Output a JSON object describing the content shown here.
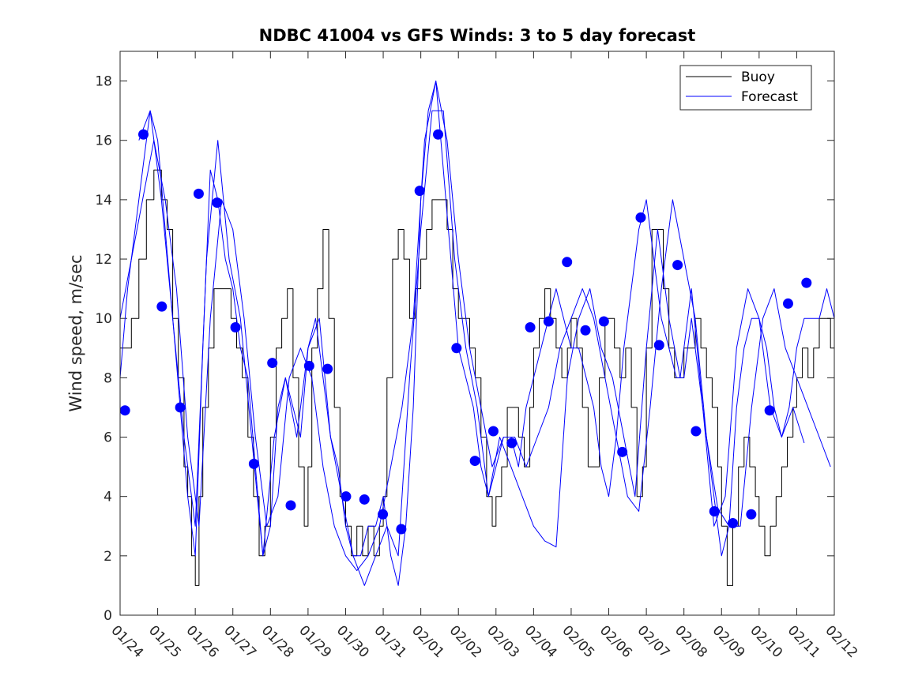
{
  "chart_data": {
    "type": "line",
    "title": "NDBC 41004 vs GFS Winds: 3 to 5 day forecast",
    "xlabel": "",
    "ylabel": "Wind speed, m/sec",
    "xlim": [
      0,
      19
    ],
    "ylim": [
      0,
      19
    ],
    "y_ticks": [
      0,
      2,
      4,
      6,
      8,
      10,
      12,
      14,
      16,
      18
    ],
    "x_ticks": [
      {
        "x": 0,
        "label": "01/24"
      },
      {
        "x": 1,
        "label": "01/25"
      },
      {
        "x": 2,
        "label": "01/26"
      },
      {
        "x": 3,
        "label": "01/27"
      },
      {
        "x": 4,
        "label": "01/28"
      },
      {
        "x": 5,
        "label": "01/29"
      },
      {
        "x": 6,
        "label": "01/30"
      },
      {
        "x": 7,
        "label": "01/31"
      },
      {
        "x": 8,
        "label": "02/01"
      },
      {
        "x": 9,
        "label": "02/02"
      },
      {
        "x": 10,
        "label": "02/03"
      },
      {
        "x": 11,
        "label": "02/04"
      },
      {
        "x": 12,
        "label": "02/05"
      },
      {
        "x": 13,
        "label": "02/06"
      },
      {
        "x": 14,
        "label": "02/07"
      },
      {
        "x": 15,
        "label": "02/08"
      },
      {
        "x": 16,
        "label": "02/09"
      },
      {
        "x": 17,
        "label": "02/10"
      },
      {
        "x": 18,
        "label": "02/11"
      },
      {
        "x": 19,
        "label": "02/12"
      }
    ],
    "legend": {
      "position": "top-right",
      "entries": [
        {
          "name": "Buoy",
          "color": "#000000"
        },
        {
          "name": "Forecast",
          "color": "#0000ff"
        }
      ]
    },
    "series": [
      {
        "name": "Buoy",
        "color": "#000000",
        "x": [
          0.0,
          0.15,
          0.3,
          0.5,
          0.7,
          0.9,
          1.0,
          1.1,
          1.25,
          1.4,
          1.55,
          1.7,
          1.8,
          1.9,
          2.0,
          2.1,
          2.2,
          2.35,
          2.5,
          2.65,
          2.8,
          2.95,
          3.1,
          3.25,
          3.4,
          3.55,
          3.7,
          3.85,
          4.0,
          4.15,
          4.3,
          4.45,
          4.6,
          4.75,
          4.9,
          5.0,
          5.1,
          5.25,
          5.4,
          5.55,
          5.7,
          5.85,
          6.0,
          6.15,
          6.3,
          6.45,
          6.6,
          6.75,
          6.9,
          7.0,
          7.1,
          7.25,
          7.4,
          7.55,
          7.7,
          7.85,
          8.0,
          8.15,
          8.3,
          8.5,
          8.7,
          8.85,
          9.0,
          9.15,
          9.3,
          9.45,
          9.6,
          9.75,
          9.9,
          10.0,
          10.15,
          10.3,
          10.45,
          10.6,
          10.75,
          10.9,
          11.0,
          11.15,
          11.3,
          11.45,
          11.6,
          11.75,
          11.9,
          12.0,
          12.15,
          12.3,
          12.45,
          12.6,
          12.75,
          12.9,
          13.0,
          13.15,
          13.3,
          13.45,
          13.6,
          13.75,
          13.9,
          14.0,
          14.15,
          14.3,
          14.45,
          14.6,
          14.75,
          14.9,
          15.0,
          15.15,
          15.3,
          15.45,
          15.6,
          15.75,
          15.9,
          16.0,
          16.15,
          16.3,
          16.45,
          16.6,
          16.75,
          16.9,
          17.0,
          17.15,
          17.3,
          17.45,
          17.6,
          17.75,
          17.9,
          18.0,
          18.15,
          18.3,
          18.45,
          18.6,
          18.75,
          18.9,
          19.0
        ],
        "values": [
          9,
          9,
          10,
          12,
          14,
          15,
          15,
          14,
          13,
          10,
          8,
          5,
          4,
          2,
          1,
          4,
          7,
          9,
          11,
          11,
          11,
          10,
          9,
          8,
          6,
          4,
          2,
          3,
          6,
          9,
          10,
          11,
          8,
          5,
          3,
          5,
          9,
          11,
          13,
          10,
          7,
          4,
          3,
          2,
          3,
          2,
          3,
          2,
          3,
          4,
          8,
          12,
          13,
          12,
          10,
          11,
          12,
          13,
          14,
          14,
          13,
          11,
          10,
          10,
          9,
          8,
          6,
          4,
          3,
          4,
          5,
          7,
          7,
          6,
          5,
          7,
          9,
          10,
          11,
          10,
          9,
          8,
          9,
          10,
          9,
          7,
          5,
          5,
          8,
          10,
          10,
          9,
          8,
          9,
          7,
          4,
          5,
          9,
          13,
          13,
          11,
          9,
          8,
          8,
          9,
          9,
          10,
          9,
          8,
          7,
          5,
          3,
          1,
          3,
          5,
          6,
          5,
          4,
          3,
          2,
          3,
          4,
          5,
          6,
          7,
          8,
          9,
          8,
          9,
          10,
          10,
          9,
          10
        ]
      },
      {
        "name": "Forecast",
        "color": "#0000ff",
        "x": [
          0.0,
          0.2,
          0.4,
          0.6,
          0.8,
          1.0,
          1.2,
          1.4,
          1.6,
          1.8,
          2.0,
          2.2,
          2.4,
          2.6,
          2.8,
          3.0,
          3.2,
          3.4,
          3.6,
          3.8,
          4.0,
          4.2,
          4.4,
          4.6,
          4.8,
          5.0,
          5.2,
          5.4,
          5.6,
          5.8,
          6.0,
          6.2,
          6.4,
          6.6,
          6.8,
          7.0,
          7.2,
          7.4,
          7.6,
          7.8,
          8.0,
          8.2,
          8.4,
          8.6,
          8.8,
          9.0,
          9.2,
          9.4,
          9.6,
          9.8,
          10.0,
          10.2,
          10.4,
          10.6,
          10.8,
          11.0,
          11.2,
          11.4,
          11.6,
          11.8,
          12.0,
          12.2,
          12.4,
          12.6,
          12.8,
          13.0,
          13.2,
          13.4,
          13.6,
          13.8,
          14.0,
          14.2,
          14.4,
          14.6,
          14.8,
          15.0,
          15.2,
          15.4,
          15.6,
          15.8,
          16.0,
          16.2,
          16.4,
          16.6,
          16.8,
          17.0,
          17.2,
          17.4,
          17.6,
          17.8,
          18.0,
          18.2,
          18.4,
          18.6,
          18.8,
          19.0
        ],
        "values": [
          8,
          11,
          13,
          15,
          17,
          16,
          13,
          10,
          7,
          4,
          2,
          9,
          15,
          14,
          12,
          11,
          9,
          8,
          5,
          2,
          3,
          7,
          8,
          7,
          6,
          9,
          10,
          8,
          6,
          5,
          3,
          2,
          2,
          3,
          3,
          4,
          2,
          1,
          3,
          7,
          14,
          17,
          18,
          15,
          12,
          9,
          8,
          7,
          5,
          4,
          5,
          6,
          6,
          5,
          7,
          8,
          9,
          10,
          11,
          10,
          9,
          9,
          8,
          7,
          5,
          4,
          6,
          9,
          11,
          13,
          14,
          12,
          10,
          9,
          8,
          8,
          10,
          8,
          6,
          4,
          2,
          3,
          7,
          9,
          10,
          10,
          9,
          7,
          6,
          7,
          9,
          10,
          10,
          10,
          11,
          10
        ]
      },
      {
        "name": "Forecast",
        "color": "#0000ff",
        "x": [
          0.5,
          0.8,
          1.1,
          1.4,
          1.7,
          2.0,
          2.3,
          2.6,
          2.9,
          3.2,
          3.5,
          3.8,
          4.1,
          4.4,
          4.7,
          5.0,
          5.3,
          5.6,
          5.9,
          6.2,
          6.5,
          6.8,
          7.1,
          7.4,
          7.7,
          8.0,
          8.3,
          8.6,
          8.9,
          9.2,
          9.5,
          9.8,
          10.1,
          10.4,
          10.7,
          11.0,
          11.3,
          11.6,
          11.9,
          12.2,
          12.5,
          12.8,
          13.1,
          13.4,
          13.7,
          14.0,
          14.3,
          14.6,
          14.9,
          15.2,
          15.5,
          15.8,
          16.1,
          16.4,
          16.7,
          17.0,
          17.3,
          17.6,
          17.9,
          18.2
        ],
        "values": [
          16,
          17,
          14,
          10,
          6,
          3,
          12,
          16,
          12,
          10,
          6,
          2,
          6,
          8,
          6,
          9,
          10,
          6,
          4,
          2,
          1,
          2,
          3,
          2,
          8,
          13,
          17,
          17,
          12,
          9,
          7,
          4,
          6,
          5,
          4,
          3,
          2.5,
          2.3,
          8,
          10,
          11,
          9,
          8,
          6,
          4,
          9,
          13,
          10,
          8,
          11,
          7,
          3,
          4,
          9,
          11,
          10,
          7,
          6,
          7,
          5.8
        ]
      },
      {
        "name": "Forecast",
        "color": "#0000ff",
        "x": [
          0.0,
          0.3,
          0.6,
          0.9,
          1.2,
          1.5,
          1.8,
          2.1,
          2.4,
          2.7,
          3.0,
          3.3,
          3.6,
          3.9,
          4.2,
          4.5,
          4.8,
          5.1,
          5.4,
          5.7,
          6.0,
          6.3,
          6.6,
          6.9,
          7.2,
          7.5,
          7.8,
          8.1,
          8.4,
          8.7,
          9.0,
          9.3,
          9.6,
          9.9,
          10.2,
          10.5,
          10.8,
          11.1,
          11.4,
          11.7,
          12.0,
          12.3,
          12.6,
          12.9,
          13.2,
          13.5,
          13.8,
          14.1,
          14.4,
          14.7,
          15.0,
          15.3,
          15.6,
          15.9,
          16.2,
          16.5,
          16.8,
          17.1,
          17.4,
          17.7,
          18.0,
          18.3,
          18.6,
          18.9
        ],
        "values": [
          10,
          12,
          14,
          16,
          14,
          11,
          6,
          3,
          10,
          14,
          13,
          10,
          6,
          3,
          4,
          8,
          9,
          8,
          5,
          3,
          2,
          1.5,
          2,
          3,
          5,
          7,
          10,
          16,
          18,
          16,
          12,
          9,
          7,
          5,
          6,
          6,
          5,
          6,
          7,
          9,
          10,
          11,
          10,
          8,
          6,
          4,
          3.5,
          7,
          11,
          14,
          12,
          10,
          6,
          3.6,
          3,
          3,
          7,
          10,
          11,
          9,
          8,
          7,
          6,
          5
        ]
      }
    ],
    "markers": {
      "name": "Forecast points",
      "color": "#0000ff",
      "x": [
        0.13,
        0.62,
        1.11,
        1.6,
        2.09,
        2.58,
        3.07,
        3.56,
        4.05,
        4.54,
        5.03,
        5.52,
        6.01,
        6.5,
        6.99,
        7.48,
        7.97,
        8.46,
        8.95,
        9.44,
        9.93,
        10.42,
        10.91,
        11.4,
        11.89,
        12.38,
        12.87,
        13.36,
        13.85,
        14.34,
        14.83,
        15.32,
        15.81,
        16.3,
        16.79,
        17.28,
        17.77,
        18.26
      ],
      "values": [
        6.9,
        16.2,
        10.4,
        7.0,
        14.2,
        13.9,
        9.7,
        5.1,
        8.5,
        3.7,
        8.4,
        8.3,
        4.0,
        3.9,
        3.4,
        2.9,
        14.3,
        16.2,
        9.0,
        5.2,
        6.2,
        5.8,
        9.7,
        9.9,
        11.9,
        9.6,
        9.9,
        5.5,
        13.4,
        9.1,
        11.8,
        6.2,
        3.5,
        3.1,
        3.4,
        6.9,
        10.5,
        11.2
      ]
    }
  }
}
